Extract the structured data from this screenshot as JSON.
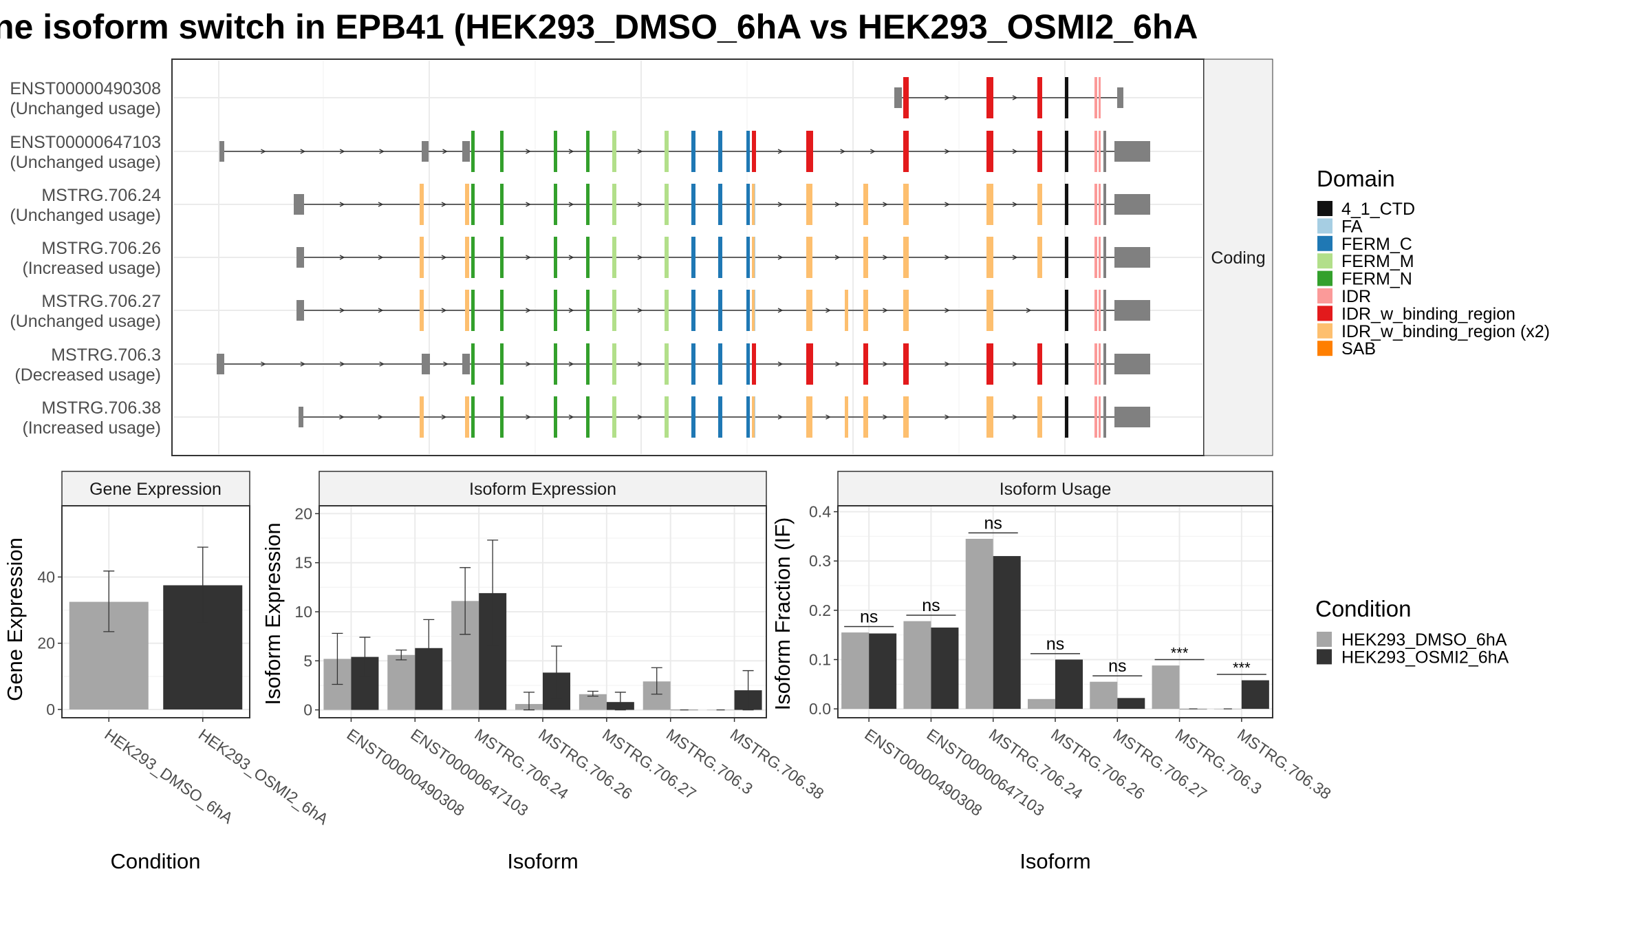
{
  "title": "ne isoform switch in EPB41 (HEK293_DMSO_6hA vs HEK293_OSMI2_6hA",
  "colors": {
    "dmso": "#a6a6a6",
    "osmi": "#333333",
    "noncoding_exon": "#808080",
    "panel_grid": "#ebebeb",
    "domains": {
      "4_1_CTD": "#111111",
      "FA": "#a6cee3",
      "FERM_C": "#1f78b4",
      "FERM_M": "#b2df8a",
      "FERM_N": "#33a02c",
      "IDR": "#fb9a99",
      "IDR_w_binding_region": "#e31a1c",
      "IDR_w_binding_region (x2)": "#fdbf6f",
      "SAB": "#ff7f00"
    }
  },
  "structure": {
    "strip_label": "Coding",
    "isoforms": [
      {
        "id": "ENST00000490308",
        "usage": "(Unchanged usage)",
        "type": "A"
      },
      {
        "id": "ENST00000647103",
        "usage": "(Unchanged usage)",
        "type": "B"
      },
      {
        "id": "MSTRG.706.24",
        "usage": "(Unchanged usage)",
        "type": "C"
      },
      {
        "id": "MSTRG.706.26",
        "usage": "(Increased usage)",
        "type": "D"
      },
      {
        "id": "MSTRG.706.27",
        "usage": "(Unchanged usage)",
        "type": "E"
      },
      {
        "id": "MSTRG.706.3",
        "usage": "(Decreased usage)",
        "type": "F"
      },
      {
        "id": "MSTRG.706.38",
        "usage": "(Increased usage)",
        "type": "G"
      }
    ]
  },
  "legend_domain": {
    "title": "Domain",
    "items": [
      "4_1_CTD",
      "FA",
      "FERM_C",
      "FERM_M",
      "FERM_N",
      "IDR",
      "IDR_w_binding_region",
      "IDR_w_binding_region (x2)",
      "SAB"
    ]
  },
  "legend_condition": {
    "title": "Condition",
    "items": [
      "HEK293_DMSO_6hA",
      "HEK293_OSMI2_6hA"
    ]
  },
  "chart_data": [
    {
      "type": "bar",
      "title": "Gene Expression",
      "xlabel": "Condition",
      "ylabel": "Gene Expression",
      "categories": [
        "HEK293_DMSO_6hA",
        "HEK293_OSMI2_6hA"
      ],
      "values": [
        32.5,
        37.5
      ],
      "error_low": [
        23.5,
        26.2
      ],
      "error_high": [
        41.8,
        49.0
      ],
      "ylim": [
        -2.5,
        61.5
      ],
      "yticks": [
        0,
        20,
        40
      ]
    },
    {
      "type": "bar",
      "title": "Isoform Expression",
      "xlabel": "Isoform",
      "ylabel": "Isoform Expression",
      "categories": [
        "ENST00000490308",
        "ENST00000647103",
        "MSTRG.706.24",
        "MSTRG.706.26",
        "MSTRG.706.27",
        "MSTRG.706.3",
        "MSTRG.706.38"
      ],
      "ylim": [
        -0.8,
        20.8
      ],
      "yticks": [
        0,
        5,
        10,
        15,
        20
      ],
      "series": [
        {
          "name": "HEK293_DMSO_6hA",
          "values": [
            5.2,
            5.6,
            11.1,
            0.6,
            1.6,
            2.9,
            0.0
          ],
          "error_low": [
            2.6,
            5.1,
            7.7,
            0.0,
            1.4,
            1.6,
            0.0
          ],
          "error_high": [
            7.8,
            6.1,
            14.5,
            1.8,
            1.9,
            4.3,
            0.0
          ]
        },
        {
          "name": "HEK293_OSMI2_6hA",
          "values": [
            5.4,
            6.3,
            11.9,
            3.8,
            0.8,
            0.0,
            2.0
          ],
          "error_low": [
            3.4,
            3.5,
            6.5,
            1.2,
            0.0,
            0.0,
            0.0
          ],
          "error_high": [
            7.4,
            9.2,
            17.3,
            6.5,
            1.8,
            0.0,
            4.0
          ]
        }
      ]
    },
    {
      "type": "bar",
      "title": "Isoform Usage",
      "xlabel": "Isoform",
      "ylabel": "Isoform Fraction (IF)",
      "categories": [
        "ENST00000490308",
        "ENST00000647103",
        "MSTRG.706.24",
        "MSTRG.706.26",
        "MSTRG.706.27",
        "MSTRG.706.3",
        "MSTRG.706.38"
      ],
      "ylim": [
        -0.018,
        0.412
      ],
      "yticks": [
        0.0,
        0.1,
        0.2,
        0.3,
        0.4
      ],
      "series": [
        {
          "name": "HEK293_DMSO_6hA",
          "values": [
            0.155,
            0.178,
            0.345,
            0.02,
            0.055,
            0.088,
            0.0
          ]
        },
        {
          "name": "HEK293_OSMI2_6hA",
          "values": [
            0.153,
            0.165,
            0.31,
            0.1,
            0.022,
            0.0,
            0.058
          ]
        }
      ],
      "significance": [
        "ns",
        "ns",
        "ns",
        "ns",
        "ns",
        "***",
        "***"
      ]
    }
  ]
}
